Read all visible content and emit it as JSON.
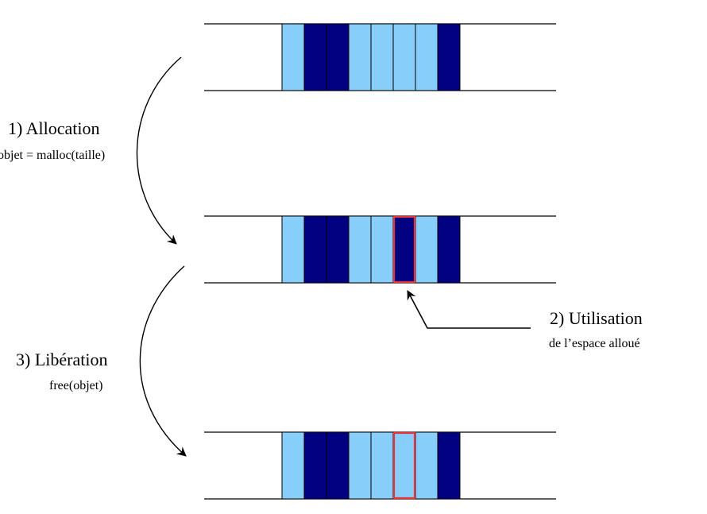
{
  "colors": {
    "free_cell": "#87CEFA",
    "used_cell": "#000080",
    "cell_border": "#000000",
    "highlight": "#E8333A",
    "line": "#000000"
  },
  "memory_states": [
    {
      "cells": [
        "free",
        "used",
        "used",
        "free",
        "free",
        "free",
        "free",
        "used"
      ],
      "highlight_index": null
    },
    {
      "cells": [
        "free",
        "used",
        "used",
        "free",
        "free",
        "used",
        "free",
        "used"
      ],
      "highlight_index": 5
    },
    {
      "cells": [
        "free",
        "used",
        "used",
        "free",
        "free",
        "free",
        "free",
        "used"
      ],
      "highlight_index": 5
    }
  ],
  "steps": {
    "allocation": {
      "title": "1) Allocation",
      "code": "objet = malloc(taille)"
    },
    "utilisation": {
      "title": "2) Utilisation",
      "detail": "de l’espace alloué"
    },
    "liberation": {
      "title": "3) Libération",
      "code": "free(objet)"
    }
  }
}
